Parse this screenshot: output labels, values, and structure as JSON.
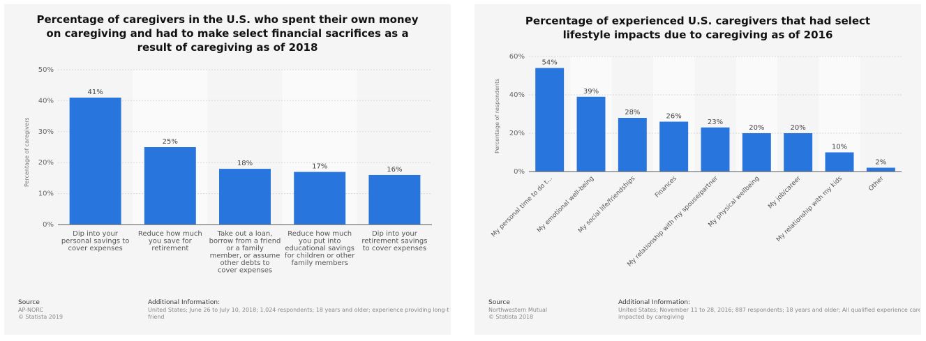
{
  "chart_data": [
    {
      "type": "bar",
      "title": "Percentage of caregivers in the U.S. who spent their own money on caregiving and had to make select financial sacrifices as a result of caregiving as of 2018",
      "ylabel": "Percentage of caregivers",
      "ylim": [
        0,
        50
      ],
      "yticks": [
        "0%",
        "10%",
        "20%",
        "30%",
        "40%",
        "50%"
      ],
      "grid": true,
      "categories": [
        [
          "Dip into your",
          "personal savings to",
          "cover expenses"
        ],
        [
          "Reduce how much",
          "you save for",
          "retirement"
        ],
        [
          "Take out a loan,",
          "borrow from a friend",
          "or a family",
          "member, or assume",
          "other debts to",
          "cover expenses"
        ],
        [
          "Reduce how much",
          "you put into",
          "educational savings",
          "for children or other",
          "family members"
        ],
        [
          "Dip into your",
          "retirement savings",
          "to cover expenses"
        ]
      ],
      "values": [
        41,
        25,
        18,
        17,
        16
      ],
      "labels": [
        "41%",
        "25%",
        "18%",
        "17%",
        "16%"
      ],
      "color": "#2876dd"
    },
    {
      "type": "bar",
      "title": "Percentage of experienced U.S. caregivers that had select lifestyle impacts due to caregiving as of 2016",
      "ylabel": "Percentage of respondents",
      "ylim": [
        0,
        60
      ],
      "yticks": [
        "0%",
        "20%",
        "40%",
        "60%"
      ],
      "grid": true,
      "categories": [
        "My personal time to do t...",
        "My emotional well-being",
        "My social life/friendships",
        "Finances",
        "My relationship with my spouse/partner",
        "My physical wellbeing",
        "My job/career",
        "My relationship with my kids",
        "Other"
      ],
      "values": [
        54,
        39,
        28,
        26,
        23,
        20,
        20,
        10,
        2
      ],
      "labels": [
        "54%",
        "39%",
        "28%",
        "26%",
        "23%",
        "20%",
        "20%",
        "10%",
        "2%"
      ],
      "color": "#2876dd"
    }
  ],
  "footer_left": {
    "source_heading": "Source",
    "source_lines": [
      "AP-NORC",
      "© Statista 2019"
    ],
    "info_heading": "Additional Information:",
    "info_lines": [
      "United States; June 26 to July 10, 2018; 1,024 respondents; 18 years and older; experience providing long-term",
      "friend"
    ]
  },
  "footer_right": {
    "source_heading": "Source",
    "source_lines": [
      "Northwestern Mutual",
      "© Statista 2018"
    ],
    "info_heading": "Additional Information:",
    "info_lines": [
      "United States; November 11 to 28, 2016; 887 respondents; 18 years and older; All qualified experience caregive",
      "impacted by caregiving"
    ]
  }
}
